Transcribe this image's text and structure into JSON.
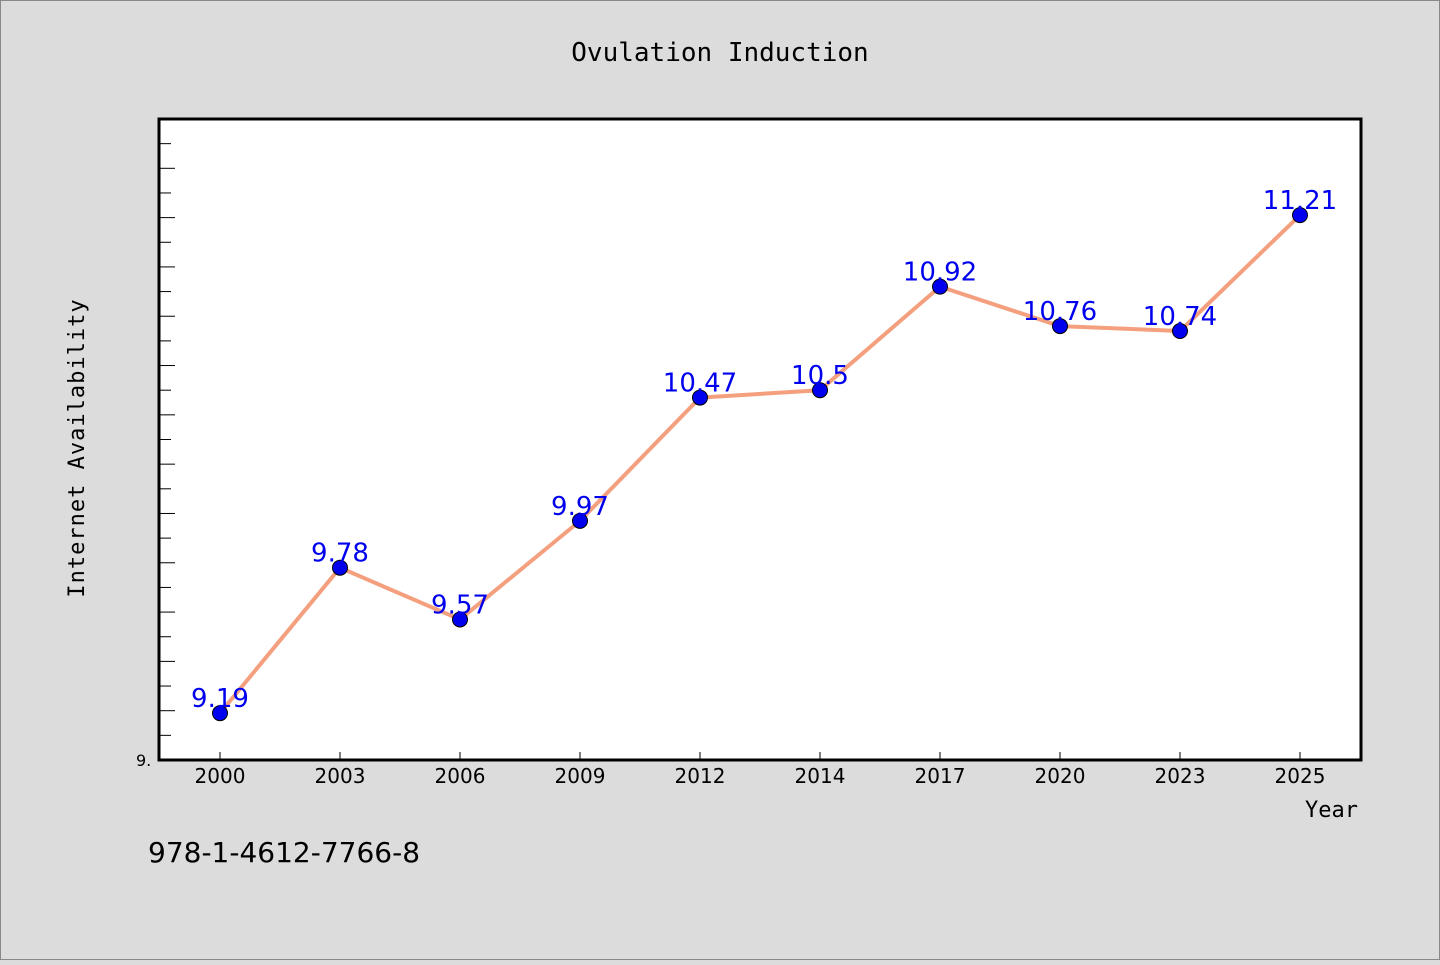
{
  "chart_data": {
    "type": "line",
    "title": "Ovulation Induction",
    "xlabel": "Year",
    "ylabel": "Internet Availability",
    "categories": [
      "2000",
      "2003",
      "2006",
      "2009",
      "2012",
      "2014",
      "2017",
      "2020",
      "2023",
      "2025"
    ],
    "series": [
      {
        "values": [
          9.19,
          9.78,
          9.57,
          9.97,
          10.47,
          10.5,
          10.92,
          10.76,
          10.74,
          11.21
        ],
        "labels": [
          "9.19",
          "9.78",
          "9.57",
          "9.97",
          "10.47",
          "10.5",
          "10.92",
          "10.76",
          "10.74",
          "11.21"
        ]
      }
    ],
    "ylim": [
      9.0,
      11.6
    ],
    "y_tick_label": "9.",
    "grid": false,
    "colors": {
      "line": "#f4a07f",
      "marker": "#0000ee",
      "label": "#0000ee",
      "background": "#dcdcdc",
      "plot_background": "#ffffff"
    }
  },
  "footer": {
    "isbn": "978-1-4612-7766-8"
  }
}
